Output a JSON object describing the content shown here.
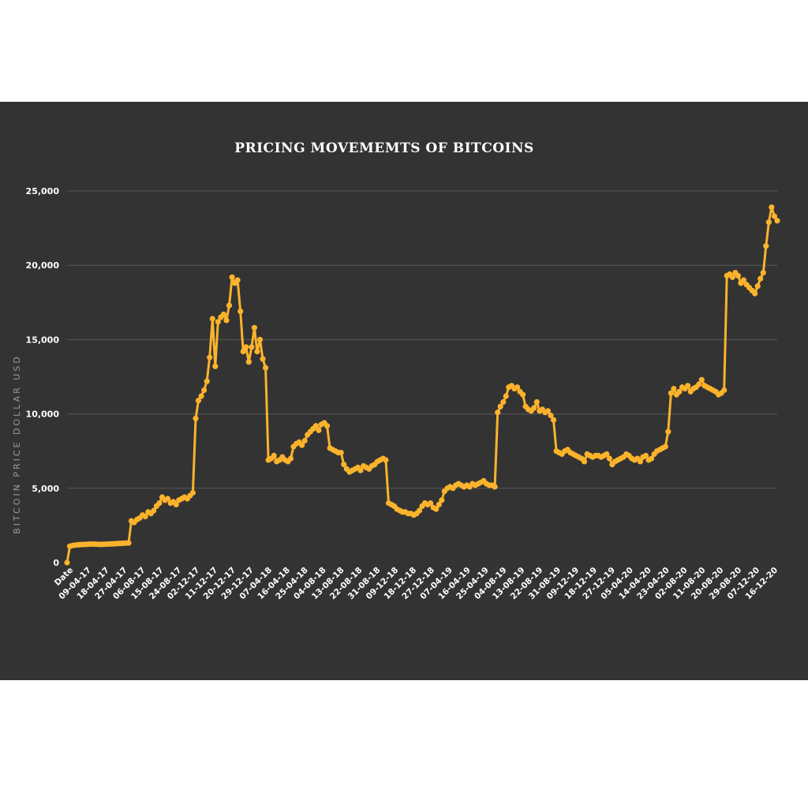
{
  "chart_data": {
    "type": "line",
    "title": "PRICING MOVEMEMTS OF BITCOINS",
    "ylabel": "BITCOIN PRICE DOLLAR USD",
    "xlabel": "",
    "ylim": [
      0,
      25000
    ],
    "yticks": [
      0,
      5000,
      10000,
      15000,
      20000,
      25000
    ],
    "ytick_labels": [
      "0",
      "5,000",
      "10,000",
      "15,000",
      "20,000",
      "25,000"
    ],
    "grid": true,
    "legend": "none",
    "line_color": "#fbb32c",
    "x_tick_labels": [
      "Date",
      "09-04-17",
      "18-04-17",
      "27-04-17",
      "06-08-17",
      "15-08-17",
      "24-08-17",
      "02-12-17",
      "11-12-17",
      "20-12-17",
      "29-12-17",
      "07-04-18",
      "16-04-18",
      "25-04-18",
      "04-08-18",
      "13-08-18",
      "22-08-18",
      "31-08-18",
      "09-12-18",
      "18-12-18",
      "27-12-18",
      "07-04-19",
      "16-04-19",
      "25-04-19",
      "04-08-19",
      "13-08-19",
      "22-08-19",
      "31-08-19",
      "09-12-19",
      "18-12-19",
      "27-12-19",
      "05-04-20",
      "14-04-20",
      "23-04-20",
      "02-08-20",
      "11-08-20",
      "20-08-20",
      "29-08-20",
      "07-12-20",
      "16-12-20"
    ],
    "series": [
      {
        "values": [
          0,
          1100,
          1150,
          1180,
          1200,
          1210,
          1220,
          1230,
          1240,
          1250,
          1240,
          1230,
          1220,
          1230,
          1240,
          1250,
          1260,
          1270,
          1280,
          1290,
          1300,
          1310,
          1320,
          2800,
          2700,
          2900,
          3000,
          3200,
          3100,
          3400,
          3300,
          3500,
          3800,
          4000,
          4400,
          4200,
          4300,
          4000,
          4100,
          3900,
          4200,
          4300,
          4400,
          4300,
          4500,
          4700,
          9700,
          10900,
          11200,
          11600,
          12200,
          13800,
          16400,
          13200,
          16200,
          16500,
          16700,
          16300,
          17300,
          19200,
          18800,
          19000,
          16900,
          14200,
          14500,
          13500,
          14500,
          15800,
          14200,
          15000,
          13700,
          13100,
          6900,
          7000,
          7200,
          6800,
          6900,
          7100,
          6900,
          6800,
          7000,
          7800,
          8000,
          8100,
          7900,
          8200,
          8600,
          8800,
          9000,
          9200,
          8900,
          9300,
          9400,
          9200,
          7700,
          7600,
          7500,
          7400,
          7400,
          6600,
          6300,
          6100,
          6200,
          6300,
          6400,
          6200,
          6500,
          6400,
          6300,
          6500,
          6600,
          6800,
          6900,
          7000,
          6900,
          4000,
          3900,
          3800,
          3600,
          3500,
          3400,
          3400,
          3300,
          3300,
          3200,
          3300,
          3500,
          3800,
          4000,
          3900,
          4000,
          3700,
          3600,
          3900,
          4200,
          4800,
          5000,
          5100,
          5000,
          5200,
          5300,
          5200,
          5100,
          5200,
          5100,
          5300,
          5200,
          5300,
          5400,
          5500,
          5300,
          5200,
          5200,
          5100,
          10100,
          10500,
          10800,
          11200,
          11800,
          11900,
          11700,
          11800,
          11500,
          11300,
          10500,
          10300,
          10200,
          10400,
          10800,
          10200,
          10300,
          10100,
          10200,
          9900,
          9600,
          7500,
          7400,
          7300,
          7500,
          7600,
          7400,
          7300,
          7200,
          7100,
          7000,
          6800,
          7300,
          7200,
          7100,
          7200,
          7200,
          7100,
          7200,
          7300,
          7000,
          6600,
          6800,
          6900,
          7000,
          7100,
          7300,
          7200,
          7000,
          6900,
          7000,
          6800,
          7100,
          7200,
          6900,
          7000,
          7300,
          7500,
          7600,
          7700,
          7800,
          8800,
          11400,
          11700,
          11300,
          11500,
          11800,
          11700,
          11900,
          11500,
          11700,
          11800,
          12000,
          12300,
          11900,
          11800,
          11700,
          11600,
          11500,
          11300,
          11400,
          11600,
          19300,
          19400,
          19200,
          19500,
          19300,
          18800,
          19000,
          18700,
          18500,
          18300,
          18100,
          18600,
          19100,
          19500,
          21300,
          22900,
          23900,
          23300,
          23000
        ]
      }
    ]
  }
}
